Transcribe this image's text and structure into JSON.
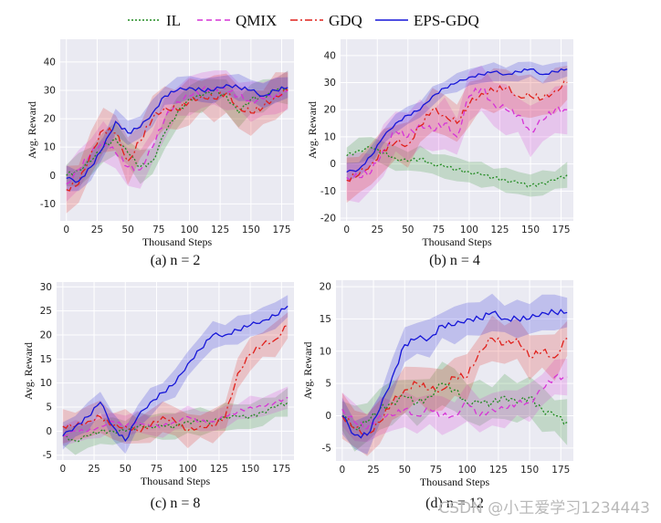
{
  "legend": [
    {
      "name": "IL",
      "color": "#228B22",
      "dash": "2,2"
    },
    {
      "name": "QMIX",
      "color": "#D633D6",
      "dash": "6,4"
    },
    {
      "name": "GDQ",
      "color": "#E0201B",
      "dash": "8,3,2,3"
    },
    {
      "name": "EPS-GDQ",
      "color": "#1515D8",
      "dash": ""
    }
  ],
  "watermark": "CSDN @小王爱学习1234443",
  "chart_data": [
    {
      "type": "line",
      "caption": "(a) n = 2",
      "xlabel": "Thousand Steps",
      "ylabel": "Avg. Reward",
      "xlim": [
        -5,
        185
      ],
      "ylim": [
        -16,
        48
      ],
      "xticks": [
        0,
        25,
        50,
        75,
        100,
        125,
        150,
        175
      ],
      "yticks": [
        -10,
        0,
        10,
        20,
        30,
        40
      ],
      "x": [
        0,
        10,
        20,
        30,
        40,
        50,
        60,
        70,
        80,
        90,
        100,
        110,
        120,
        130,
        140,
        150,
        160,
        170,
        180
      ],
      "series": [
        {
          "name": "IL",
          "values": [
            0,
            2,
            5,
            10,
            13,
            8,
            3,
            5,
            15,
            22,
            27,
            28,
            30,
            28,
            22,
            27,
            28,
            30,
            31
          ],
          "band": 5
        },
        {
          "name": "QMIX",
          "values": [
            -3,
            2,
            8,
            12,
            8,
            3,
            2,
            10,
            20,
            26,
            28,
            30,
            31,
            30,
            28,
            26,
            27,
            28,
            30
          ],
          "band": 6
        },
        {
          "name": "GDQ",
          "values": [
            -5,
            -3,
            8,
            16,
            15,
            5,
            12,
            20,
            24,
            23,
            26,
            28,
            27,
            29,
            24,
            22,
            24,
            28,
            30
          ],
          "band": 7
        },
        {
          "name": "EPS-GDQ",
          "values": [
            -1,
            -2,
            3,
            10,
            19,
            15,
            17,
            22,
            28,
            30,
            31,
            30,
            30,
            32,
            31,
            30,
            28,
            30,
            31
          ],
          "band": 4
        }
      ]
    },
    {
      "type": "line",
      "caption": "(b) n = 4",
      "xlabel": "Thousand Steps",
      "ylabel": "Avg. Reward",
      "xlim": [
        -5,
        185
      ],
      "ylim": [
        -21,
        46
      ],
      "xticks": [
        0,
        25,
        50,
        75,
        100,
        125,
        150,
        175
      ],
      "yticks": [
        -20,
        -10,
        0,
        10,
        20,
        30,
        40
      ],
      "x": [
        0,
        10,
        20,
        30,
        40,
        50,
        60,
        70,
        80,
        90,
        100,
        110,
        120,
        130,
        140,
        150,
        160,
        170,
        180
      ],
      "series": [
        {
          "name": "IL",
          "values": [
            3,
            5,
            6,
            4,
            2,
            1,
            2,
            0,
            -1,
            -2,
            -3,
            -4,
            -5,
            -6,
            -7,
            -8,
            -7,
            -6,
            -4
          ],
          "band": 4
        },
        {
          "name": "QMIX",
          "values": [
            -5,
            -5,
            -3,
            5,
            12,
            10,
            15,
            12,
            15,
            10,
            25,
            28,
            22,
            20,
            18,
            12,
            16,
            20,
            20
          ],
          "band": 8
        },
        {
          "name": "GDQ",
          "values": [
            -6,
            -4,
            0,
            5,
            8,
            7,
            14,
            20,
            18,
            15,
            22,
            26,
            27,
            28,
            25,
            25,
            24,
            27,
            30
          ],
          "band": 7
        },
        {
          "name": "EPS-GDQ",
          "values": [
            -3,
            -2,
            3,
            10,
            15,
            18,
            20,
            25,
            28,
            30,
            32,
            33,
            34,
            33,
            34,
            35,
            33,
            34,
            35
          ],
          "band": 3
        }
      ]
    },
    {
      "type": "line",
      "caption": "(c) n = 8",
      "xlabel": "Thousand Steps",
      "ylabel": "Avg. Reward",
      "xlim": [
        -5,
        185
      ],
      "ylim": [
        -6,
        31
      ],
      "xticks": [
        0,
        25,
        50,
        75,
        100,
        125,
        150,
        175
      ],
      "yticks": [
        -5,
        0,
        5,
        10,
        15,
        20,
        25,
        30
      ],
      "x": [
        0,
        10,
        20,
        30,
        40,
        50,
        60,
        70,
        80,
        90,
        100,
        110,
        120,
        130,
        140,
        150,
        160,
        170,
        180
      ],
      "series": [
        {
          "name": "IL",
          "values": [
            -1,
            -2,
            -1,
            0,
            0,
            0,
            1,
            1,
            1,
            1,
            2,
            2,
            2,
            3,
            3,
            3,
            4,
            5,
            6
          ],
          "band": 2.5
        },
        {
          "name": "QMIX",
          "values": [
            -1,
            0,
            0,
            1,
            2,
            1,
            2,
            1,
            1,
            2,
            3,
            2,
            2,
            3,
            4,
            5,
            5,
            6,
            7
          ],
          "band": 2
        },
        {
          "name": "GDQ",
          "values": [
            1,
            1,
            2,
            3,
            1,
            1,
            0,
            1,
            3,
            2,
            0,
            1,
            1,
            3,
            12,
            16,
            18,
            19,
            22
          ],
          "band": 3
        },
        {
          "name": "EPS-GDQ",
          "values": [
            -1,
            1,
            3,
            6,
            1,
            -2,
            3,
            6,
            8,
            10,
            14,
            17,
            20,
            20,
            21,
            22,
            23,
            24,
            26
          ],
          "band": 2.5
        }
      ]
    },
    {
      "type": "line",
      "caption": "(d) n = 12",
      "xlabel": "Thousand Steps",
      "ylabel": "Avg. Reward",
      "xlim": [
        -5,
        185
      ],
      "ylim": [
        -7,
        21
      ],
      "xticks": [
        0,
        25,
        50,
        75,
        100,
        125,
        150,
        175
      ],
      "yticks": [
        -5,
        0,
        5,
        10,
        15,
        20
      ],
      "x": [
        0,
        10,
        20,
        30,
        40,
        50,
        60,
        70,
        80,
        90,
        100,
        110,
        120,
        130,
        140,
        150,
        160,
        170,
        180
      ],
      "series": [
        {
          "name": "IL",
          "values": [
            0,
            -2,
            -1,
            1,
            2,
            3,
            2,
            3,
            5,
            4,
            2,
            2,
            2,
            3,
            2,
            3,
            1,
            0,
            -1
          ],
          "band": 3
        },
        {
          "name": "QMIX",
          "values": [
            1,
            -1,
            -2,
            0,
            0,
            1,
            0,
            1,
            0,
            0,
            2,
            0,
            1,
            1,
            2,
            2,
            4,
            6,
            6
          ],
          "band": 2.5
        },
        {
          "name": "GDQ",
          "values": [
            0,
            -2,
            -3,
            -1,
            2,
            4,
            5,
            4,
            4,
            6,
            6,
            10,
            12,
            11,
            12,
            9,
            10,
            9,
            12
          ],
          "band": 3
        },
        {
          "name": "EPS-GDQ",
          "values": [
            0,
            -3,
            -3,
            1,
            6,
            11,
            12,
            12,
            14,
            14,
            15,
            15,
            16,
            15,
            15,
            15,
            16,
            16,
            16
          ],
          "band": 2.5
        }
      ]
    }
  ]
}
